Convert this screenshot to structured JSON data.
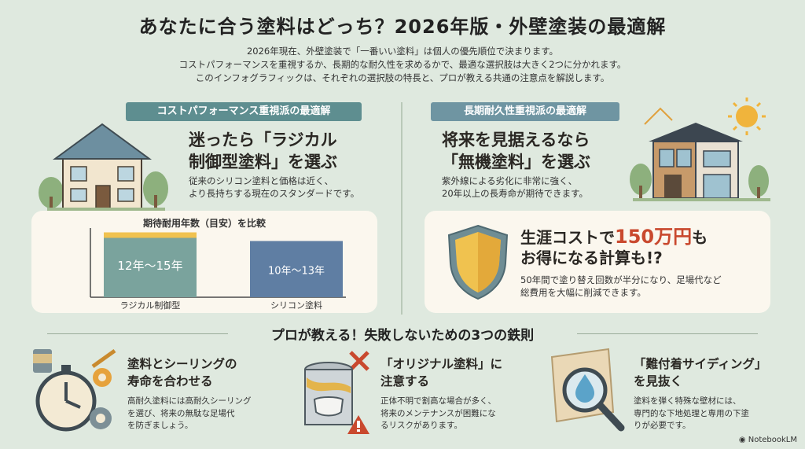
{
  "title": "あなたに合う塗料はどっち？2026年版・外壁塗装の最適解",
  "intro": [
    "2026年現在、外壁塗装で「一番いい塗料」は個人の優先順位で決まります。",
    "コストパフォーマンスを重視するか、長期的な耐久性を求めるかで、最適な選択肢は大きく2つに分かれます。",
    "このインフォグラフィックは、それぞれの選択肢の特長と、プロが教える共通の注意点を解説します。"
  ],
  "left": {
    "banner": "コストパフォーマンス重視派の最適解",
    "headline": [
      "迷ったら「ラジカル",
      "制御型塗料」を選ぶ"
    ],
    "desc": [
      "従来のシリコン塗料と価格は近く、",
      "より長持ちする現在のスタンダードです。"
    ]
  },
  "chart_data": {
    "type": "bar",
    "title": "期待耐用年数（目安）を比較",
    "categories": [
      "ラジカル制御型",
      "シリコン塗料"
    ],
    "series": [
      {
        "values": [
          [
            12,
            15
          ],
          [
            10,
            13
          ]
        ]
      }
    ],
    "data_labels": [
      "12年～15年",
      "10年～13年"
    ],
    "colors": [
      "#7aa39d",
      "#5f7ea3"
    ],
    "accent": "#f0c24f"
  },
  "right": {
    "banner": "長期耐久性重視派の最適解",
    "headline": [
      "将来を見据えるなら",
      "「無機塗料」を選ぶ"
    ],
    "desc": [
      "紫外線による劣化に非常に強く、",
      "20年以上の長寿命が期待できます。"
    ],
    "cost_pre": "生涯コストで",
    "cost_num": "150万円",
    "cost_post": "も",
    "cost_line2": "お得になる計算も!?",
    "cost_desc": [
      "50年間で塗り替え回数が半分になり、足場代など",
      "総費用を大幅に削減できます。"
    ]
  },
  "section_title": "プロが教える！失敗しないための3つの鉄則",
  "tips": [
    {
      "head": [
        "塗料とシーリングの",
        "寿命を合わせる"
      ],
      "body": [
        "高耐久塗料には高耐久シーリング",
        "を選び、将来の無駄な足場代",
        "を防ぎましょう。"
      ]
    },
    {
      "head": [
        "「オリジナル塗料」に",
        "注意する"
      ],
      "body": [
        "正体不明で割高な場合が多く、",
        "将来のメンテナンスが困難にな",
        "るリスクがあります。"
      ]
    },
    {
      "head": [
        "「難付着サイディング」",
        "を見抜く"
      ],
      "body": [
        "塗料を弾く特殊な壁材には、",
        "専門的な下地処理と専用の下塗",
        "りが必要です。"
      ]
    }
  ],
  "badge": "NotebookLM",
  "colors": {
    "background": "#dfe9df",
    "accent_red": "#c9492e",
    "panel": "#fbf7ee"
  }
}
